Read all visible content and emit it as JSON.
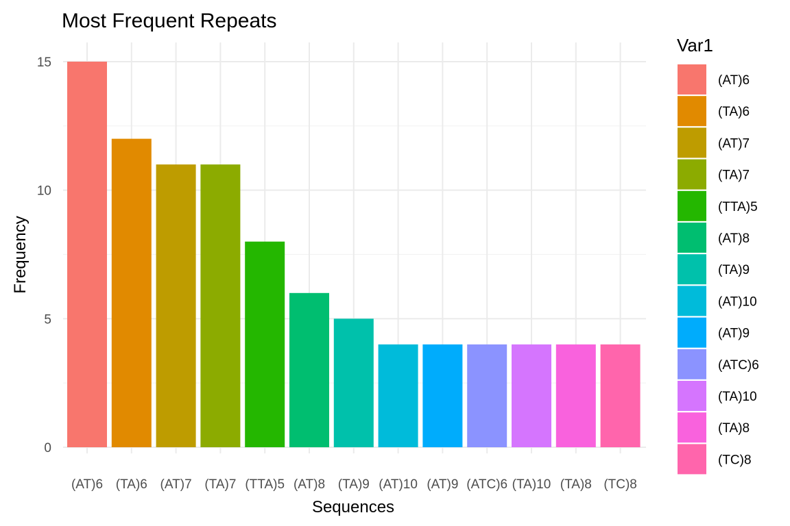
{
  "chart_data": {
    "type": "bar",
    "title": "Most Frequent Repeats",
    "xlabel": "Sequences",
    "ylabel": "Frequency",
    "categories": [
      "(AT)6",
      "(TA)6",
      "(AT)7",
      "(TA)7",
      "(TTA)5",
      "(AT)8",
      "(TA)9",
      "(AT)10",
      "(AT)9",
      "(ATC)6",
      "(TA)10",
      "(TA)8",
      "(TC)8"
    ],
    "values": [
      15,
      12,
      11,
      11,
      8,
      6,
      5,
      4,
      4,
      4,
      4,
      4,
      4
    ],
    "colors": [
      "#F8766D",
      "#E18A00",
      "#BE9C00",
      "#8CAB00",
      "#24B700",
      "#00BE70",
      "#00C1AB",
      "#00BBDA",
      "#00ACFC",
      "#8B93FF",
      "#D575FE",
      "#F962DD",
      "#FF65AC"
    ],
    "ylim": [
      0,
      15
    ],
    "yticks": [
      0,
      5,
      10,
      15
    ],
    "grid": true,
    "legend": {
      "title": "Var1",
      "position": "right"
    }
  }
}
